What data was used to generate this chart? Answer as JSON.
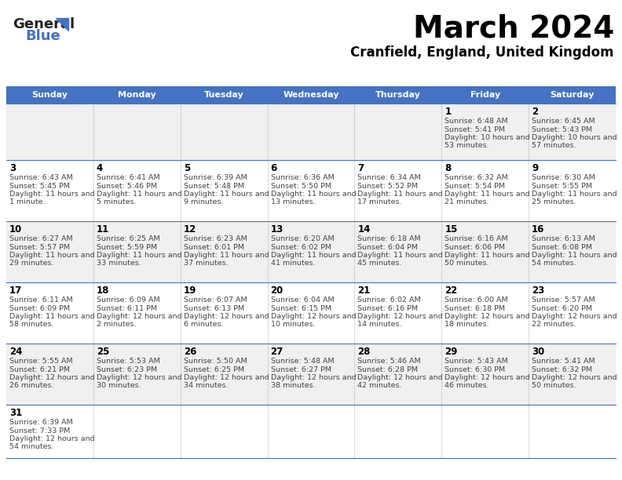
{
  "title": "March 2024",
  "subtitle": "Cranfield, England, United Kingdom",
  "header_bg": "#4472C4",
  "header_text_color": "#FFFFFF",
  "weekdays": [
    "Sunday",
    "Monday",
    "Tuesday",
    "Wednesday",
    "Thursday",
    "Friday",
    "Saturday"
  ],
  "title_color": "#000000",
  "subtitle_color": "#000000",
  "day_num_color": "#000000",
  "cell_text_color": "#444444",
  "cell_bg_alt": "#F0F0F0",
  "cell_bg_normal": "#FFFFFF",
  "grid_color": "#4472C4",
  "logo_dark_color": "#222222",
  "logo_blue_color": "#4472C4",
  "days": [
    {
      "day": 1,
      "col": 5,
      "row": 0,
      "sunrise": "6:48 AM",
      "sunset": "5:41 PM",
      "daylight": "10 hours and 53 minutes."
    },
    {
      "day": 2,
      "col": 6,
      "row": 0,
      "sunrise": "6:45 AM",
      "sunset": "5:43 PM",
      "daylight": "10 hours and 57 minutes."
    },
    {
      "day": 3,
      "col": 0,
      "row": 1,
      "sunrise": "6:43 AM",
      "sunset": "5:45 PM",
      "daylight": "11 hours and 1 minute."
    },
    {
      "day": 4,
      "col": 1,
      "row": 1,
      "sunrise": "6:41 AM",
      "sunset": "5:46 PM",
      "daylight": "11 hours and 5 minutes."
    },
    {
      "day": 5,
      "col": 2,
      "row": 1,
      "sunrise": "6:39 AM",
      "sunset": "5:48 PM",
      "daylight": "11 hours and 9 minutes."
    },
    {
      "day": 6,
      "col": 3,
      "row": 1,
      "sunrise": "6:36 AM",
      "sunset": "5:50 PM",
      "daylight": "11 hours and 13 minutes."
    },
    {
      "day": 7,
      "col": 4,
      "row": 1,
      "sunrise": "6:34 AM",
      "sunset": "5:52 PM",
      "daylight": "11 hours and 17 minutes."
    },
    {
      "day": 8,
      "col": 5,
      "row": 1,
      "sunrise": "6:32 AM",
      "sunset": "5:54 PM",
      "daylight": "11 hours and 21 minutes."
    },
    {
      "day": 9,
      "col": 6,
      "row": 1,
      "sunrise": "6:30 AM",
      "sunset": "5:55 PM",
      "daylight": "11 hours and 25 minutes."
    },
    {
      "day": 10,
      "col": 0,
      "row": 2,
      "sunrise": "6:27 AM",
      "sunset": "5:57 PM",
      "daylight": "11 hours and 29 minutes."
    },
    {
      "day": 11,
      "col": 1,
      "row": 2,
      "sunrise": "6:25 AM",
      "sunset": "5:59 PM",
      "daylight": "11 hours and 33 minutes."
    },
    {
      "day": 12,
      "col": 2,
      "row": 2,
      "sunrise": "6:23 AM",
      "sunset": "6:01 PM",
      "daylight": "11 hours and 37 minutes."
    },
    {
      "day": 13,
      "col": 3,
      "row": 2,
      "sunrise": "6:20 AM",
      "sunset": "6:02 PM",
      "daylight": "11 hours and 41 minutes."
    },
    {
      "day": 14,
      "col": 4,
      "row": 2,
      "sunrise": "6:18 AM",
      "sunset": "6:04 PM",
      "daylight": "11 hours and 45 minutes."
    },
    {
      "day": 15,
      "col": 5,
      "row": 2,
      "sunrise": "6:16 AM",
      "sunset": "6:06 PM",
      "daylight": "11 hours and 50 minutes."
    },
    {
      "day": 16,
      "col": 6,
      "row": 2,
      "sunrise": "6:13 AM",
      "sunset": "6:08 PM",
      "daylight": "11 hours and 54 minutes."
    },
    {
      "day": 17,
      "col": 0,
      "row": 3,
      "sunrise": "6:11 AM",
      "sunset": "6:09 PM",
      "daylight": "11 hours and 58 minutes."
    },
    {
      "day": 18,
      "col": 1,
      "row": 3,
      "sunrise": "6:09 AM",
      "sunset": "6:11 PM",
      "daylight": "12 hours and 2 minutes."
    },
    {
      "day": 19,
      "col": 2,
      "row": 3,
      "sunrise": "6:07 AM",
      "sunset": "6:13 PM",
      "daylight": "12 hours and 6 minutes."
    },
    {
      "day": 20,
      "col": 3,
      "row": 3,
      "sunrise": "6:04 AM",
      "sunset": "6:15 PM",
      "daylight": "12 hours and 10 minutes."
    },
    {
      "day": 21,
      "col": 4,
      "row": 3,
      "sunrise": "6:02 AM",
      "sunset": "6:16 PM",
      "daylight": "12 hours and 14 minutes."
    },
    {
      "day": 22,
      "col": 5,
      "row": 3,
      "sunrise": "6:00 AM",
      "sunset": "6:18 PM",
      "daylight": "12 hours and 18 minutes."
    },
    {
      "day": 23,
      "col": 6,
      "row": 3,
      "sunrise": "5:57 AM",
      "sunset": "6:20 PM",
      "daylight": "12 hours and 22 minutes."
    },
    {
      "day": 24,
      "col": 0,
      "row": 4,
      "sunrise": "5:55 AM",
      "sunset": "6:21 PM",
      "daylight": "12 hours and 26 minutes."
    },
    {
      "day": 25,
      "col": 1,
      "row": 4,
      "sunrise": "5:53 AM",
      "sunset": "6:23 PM",
      "daylight": "12 hours and 30 minutes."
    },
    {
      "day": 26,
      "col": 2,
      "row": 4,
      "sunrise": "5:50 AM",
      "sunset": "6:25 PM",
      "daylight": "12 hours and 34 minutes."
    },
    {
      "day": 27,
      "col": 3,
      "row": 4,
      "sunrise": "5:48 AM",
      "sunset": "6:27 PM",
      "daylight": "12 hours and 38 minutes."
    },
    {
      "day": 28,
      "col": 4,
      "row": 4,
      "sunrise": "5:46 AM",
      "sunset": "6:28 PM",
      "daylight": "12 hours and 42 minutes."
    },
    {
      "day": 29,
      "col": 5,
      "row": 4,
      "sunrise": "5:43 AM",
      "sunset": "6:30 PM",
      "daylight": "12 hours and 46 minutes."
    },
    {
      "day": 30,
      "col": 6,
      "row": 4,
      "sunrise": "5:41 AM",
      "sunset": "6:32 PM",
      "daylight": "12 hours and 50 minutes."
    },
    {
      "day": 31,
      "col": 0,
      "row": 5,
      "sunrise": "6:39 AM",
      "sunset": "7:33 PM",
      "daylight": "12 hours and 54 minutes."
    }
  ]
}
